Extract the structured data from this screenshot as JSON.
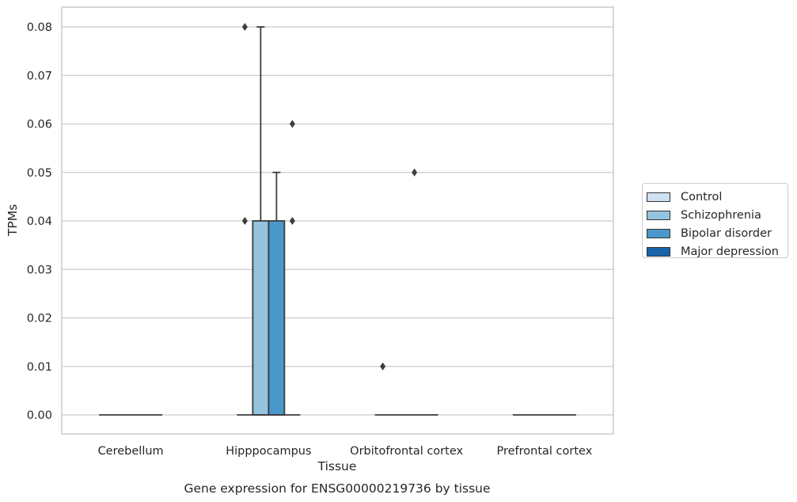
{
  "chart_data": {
    "type": "box",
    "xlabel": "Tissue",
    "ylabel": "TPMs",
    "caption": "Gene expression for ENSG00000219736 by tissue",
    "ylim": [
      -0.004,
      0.084
    ],
    "yticks": [
      "0.00",
      "0.01",
      "0.02",
      "0.03",
      "0.04",
      "0.05",
      "0.06",
      "0.07",
      "0.08"
    ],
    "grid": true,
    "legend_position": "right",
    "categories": [
      "Cerebellum",
      "Hipppocampus",
      "Orbitofrontal cortex",
      "Prefrontal cortex"
    ],
    "series": [
      {
        "name": "Control",
        "color": "#d0e1f2",
        "boxes": [
          {
            "q1": 0,
            "median": 0,
            "q3": 0,
            "whisker_low": 0,
            "whisker_high": 0,
            "outliers": []
          },
          {
            "q1": 0,
            "median": 0,
            "q3": 0,
            "whisker_low": 0,
            "whisker_high": 0,
            "outliers": [
              0.04,
              0.08
            ]
          },
          {
            "q1": 0,
            "median": 0,
            "q3": 0,
            "whisker_low": 0,
            "whisker_high": 0,
            "outliers": [
              0.01
            ]
          },
          {
            "q1": 0,
            "median": 0,
            "q3": 0,
            "whisker_low": 0,
            "whisker_high": 0,
            "outliers": []
          }
        ]
      },
      {
        "name": "Schizophrenia",
        "color": "#94c4df",
        "boxes": [
          {
            "q1": 0,
            "median": 0,
            "q3": 0,
            "whisker_low": 0,
            "whisker_high": 0,
            "outliers": []
          },
          {
            "q1": 0,
            "median": 0,
            "q3": 0.04,
            "whisker_low": 0,
            "whisker_high": 0.08,
            "outliers": []
          },
          {
            "q1": 0,
            "median": 0,
            "q3": 0,
            "whisker_low": 0,
            "whisker_high": 0,
            "outliers": []
          },
          {
            "q1": 0,
            "median": 0,
            "q3": 0,
            "whisker_low": 0,
            "whisker_high": 0,
            "outliers": []
          }
        ]
      },
      {
        "name": "Bipolar disorder",
        "color": "#4a98c9",
        "boxes": [
          {
            "q1": 0,
            "median": 0,
            "q3": 0,
            "whisker_low": 0,
            "whisker_high": 0,
            "outliers": []
          },
          {
            "q1": 0,
            "median": 0,
            "q3": 0.04,
            "whisker_low": 0,
            "whisker_high": 0.05,
            "outliers": []
          },
          {
            "q1": 0,
            "median": 0,
            "q3": 0,
            "whisker_low": 0,
            "whisker_high": 0,
            "outliers": [
              0.05
            ]
          },
          {
            "q1": 0,
            "median": 0,
            "q3": 0,
            "whisker_low": 0,
            "whisker_high": 0,
            "outliers": []
          }
        ]
      },
      {
        "name": "Major depression",
        "color": "#1764ab",
        "boxes": [
          {
            "q1": 0,
            "median": 0,
            "q3": 0,
            "whisker_low": 0,
            "whisker_high": 0,
            "outliers": []
          },
          {
            "q1": 0,
            "median": 0,
            "q3": 0,
            "whisker_low": 0,
            "whisker_high": 0,
            "outliers": [
              0.04,
              0.06
            ]
          },
          {
            "q1": 0,
            "median": 0,
            "q3": 0,
            "whisker_low": 0,
            "whisker_high": 0,
            "outliers": []
          },
          {
            "q1": 0,
            "median": 0,
            "q3": 0,
            "whisker_low": 0,
            "whisker_high": 0,
            "outliers": []
          }
        ]
      }
    ]
  }
}
